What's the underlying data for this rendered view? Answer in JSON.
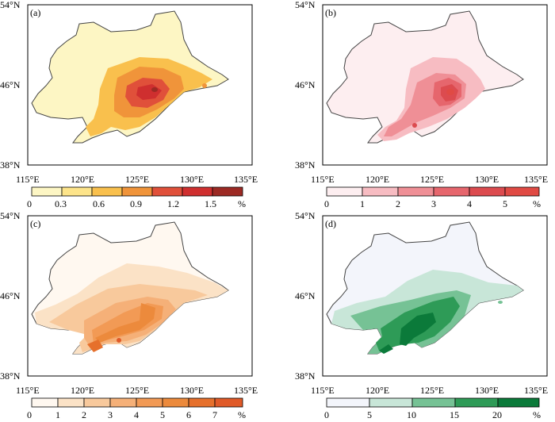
{
  "panels": [
    {
      "label": "(a)",
      "lat_labels": [
        "54°N",
        "46°N",
        "38°N"
      ],
      "lon_labels": [
        "115°E",
        "120°E",
        "125°E",
        "130°E",
        "135°E"
      ],
      "colorbar": {
        "ticks": [
          "0",
          "0.3",
          "0.6",
          "0.9",
          "1.2",
          "1.5",
          "%"
        ],
        "colors": [
          "#fdf6c4",
          "#fde48a",
          "#f9c04d",
          "#f0943a",
          "#e0503a",
          "#cf2f2f",
          "#9c2a24"
        ]
      }
    },
    {
      "label": "(b)",
      "lat_labels": [
        "54°N",
        "46°N",
        "38°N"
      ],
      "lon_labels": [
        "115°E",
        "120°E",
        "125°E",
        "130°E",
        "135°E"
      ],
      "colorbar": {
        "ticks": [
          "0",
          "1",
          "2",
          "3",
          "4",
          "5",
          "%"
        ],
        "colors": [
          "#fdeef0",
          "#f7bcc2",
          "#ef8f96",
          "#e6666d",
          "#dc4b4f",
          "#e04a44"
        ]
      }
    },
    {
      "label": "(c)",
      "lat_labels": [
        "54°N",
        "46°N",
        "38°N"
      ],
      "lon_labels": [
        "115°E",
        "120°E",
        "125°E",
        "130°E",
        "135°E"
      ],
      "colorbar": {
        "ticks": [
          "0",
          "1",
          "2",
          "3",
          "4",
          "5",
          "6",
          "7",
          "%"
        ],
        "colors": [
          "#fff8f0",
          "#fbe2c6",
          "#f8c99c",
          "#f5b078",
          "#f29a55",
          "#ec8a3c",
          "#e6702c",
          "#e05a28"
        ]
      }
    },
    {
      "label": "(d)",
      "lat_labels": [
        "54°N",
        "46°N",
        "38°N"
      ],
      "lon_labels": [
        "115°E",
        "120°E",
        "125°E",
        "130°E",
        "135°E"
      ],
      "colorbar": {
        "ticks": [
          "0",
          "5",
          "10",
          "15",
          "20",
          "%"
        ],
        "colors": [
          "#f3f5fb",
          "#c8e6d8",
          "#76c295",
          "#2e9b57",
          "#0b7a3a"
        ]
      }
    }
  ]
}
